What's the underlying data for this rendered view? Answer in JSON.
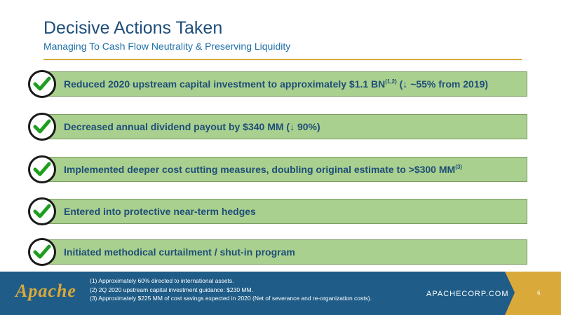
{
  "header": {
    "title": "Decisive Actions Taken",
    "subtitle": "Managing To Cash Flow Neutrality & Preserving Liquidity"
  },
  "items": [
    {
      "text": "Reduced 2020 upstream capital investment to approximately $1.1 BN",
      "sup": "(1,2)",
      "suffix": " (↓ ~55% from 2019)"
    },
    {
      "text": "Decreased annual dividend payout by $340 MM (↓ 90%)",
      "sup": "",
      "suffix": ""
    },
    {
      "text": "Implemented deeper cost cutting measures, doubling original estimate to >$300 MM",
      "sup": "(3)",
      "suffix": ""
    },
    {
      "text": "Entered into protective near-term hedges",
      "sup": "",
      "suffix": ""
    },
    {
      "text": "Initiated methodical curtailment / shut-in program",
      "sup": "",
      "suffix": ""
    }
  ],
  "footer": {
    "logo": "Apache",
    "notes": [
      "(1) Approximately 60% directed to international assets.",
      "(2) 2Q 2020 upstream capital investment guidance: $230 MM.",
      "(3) Approximately $225 MM of cost savings expected in 2020 (Net of severance and re-organization costs)."
    ],
    "site": "APACHECORP.COM",
    "page": "6"
  },
  "colors": {
    "bar": "#a9d08e",
    "check": "#1e9e1e",
    "footer": "#1f5c87",
    "accent": "#d9a93a"
  },
  "icons": {
    "check": "check-icon"
  }
}
